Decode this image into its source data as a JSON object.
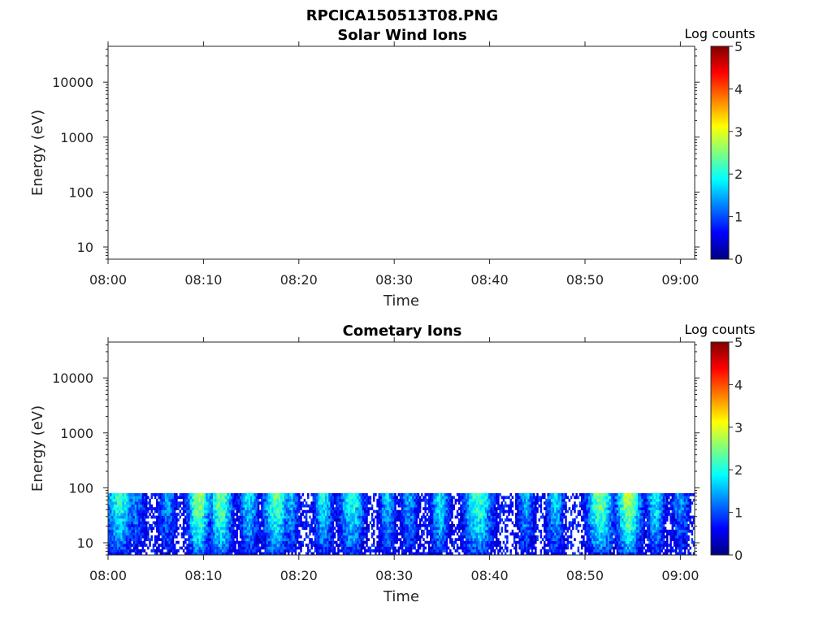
{
  "figure_title": "RPCICA150513T08.PNG",
  "colors": {
    "colormap": [
      "#00007f",
      "#0000ff",
      "#007fff",
      "#00ffff",
      "#7fff7f",
      "#ffff00",
      "#ff7f00",
      "#ff0000",
      "#7f0000"
    ],
    "axes": "#262626",
    "background": "#ffffff"
  },
  "chart_data": [
    {
      "type": "heatmap",
      "title": "Solar Wind Ions",
      "xlabel": "Time",
      "ylabel": "Energy (eV)",
      "x_ticks": [
        "08:00",
        "08:10",
        "08:20",
        "08:30",
        "08:40",
        "08:50",
        "09:00"
      ],
      "y_ticks": [
        "10",
        "100",
        "1000",
        "10000"
      ],
      "y_scale": "log",
      "y_range_eV": [
        6,
        45000
      ],
      "x_range_minutes": [
        0,
        61.5
      ],
      "colorbar": {
        "label": "Log counts",
        "ticks": [
          "0",
          "1",
          "2",
          "3",
          "4",
          "5"
        ],
        "range": [
          0,
          5
        ]
      },
      "data_note": "no counts",
      "bursts": []
    },
    {
      "type": "heatmap",
      "title": "Cometary Ions",
      "xlabel": "Time",
      "ylabel": "Energy (eV)",
      "x_ticks": [
        "08:00",
        "08:10",
        "08:20",
        "08:30",
        "08:40",
        "08:50",
        "09:00"
      ],
      "y_ticks": [
        "10",
        "100",
        "1000",
        "10000"
      ],
      "y_scale": "log",
      "y_range_eV": [
        6,
        45000
      ],
      "x_range_minutes": [
        0,
        61.5
      ],
      "colorbar": {
        "label": "Log counts",
        "ticks": [
          "0",
          "1",
          "2",
          "3",
          "4",
          "5"
        ],
        "range": [
          0,
          5
        ]
      },
      "energy_max_eV": 80,
      "bursts": [
        {
          "t": 1.2,
          "w": 1.6,
          "peak": 2.2
        },
        {
          "t": 3.0,
          "w": 1.0,
          "peak": 1.4
        },
        {
          "t": 6.2,
          "w": 1.0,
          "peak": 1.5
        },
        {
          "t": 9.5,
          "w": 1.2,
          "peak": 2.8
        },
        {
          "t": 11.8,
          "w": 1.3,
          "peak": 2.6
        },
        {
          "t": 14.8,
          "w": 1.1,
          "peak": 1.9
        },
        {
          "t": 17.6,
          "w": 1.4,
          "peak": 2.5
        },
        {
          "t": 19.2,
          "w": 0.9,
          "peak": 1.6
        },
        {
          "t": 22.6,
          "w": 1.1,
          "peak": 2.0
        },
        {
          "t": 25.6,
          "w": 1.4,
          "peak": 2.2
        },
        {
          "t": 29.3,
          "w": 0.9,
          "peak": 1.7
        },
        {
          "t": 31.6,
          "w": 1.0,
          "peak": 1.5
        },
        {
          "t": 34.8,
          "w": 1.0,
          "peak": 2.0
        },
        {
          "t": 38.8,
          "w": 1.6,
          "peak": 2.4
        },
        {
          "t": 43.8,
          "w": 1.0,
          "peak": 1.6
        },
        {
          "t": 46.9,
          "w": 1.0,
          "peak": 1.8
        },
        {
          "t": 51.6,
          "w": 1.5,
          "peak": 2.6
        },
        {
          "t": 54.6,
          "w": 1.4,
          "peak": 2.9
        },
        {
          "t": 57.4,
          "w": 1.0,
          "peak": 2.0
        },
        {
          "t": 60.0,
          "w": 1.0,
          "peak": 1.5
        }
      ]
    }
  ]
}
